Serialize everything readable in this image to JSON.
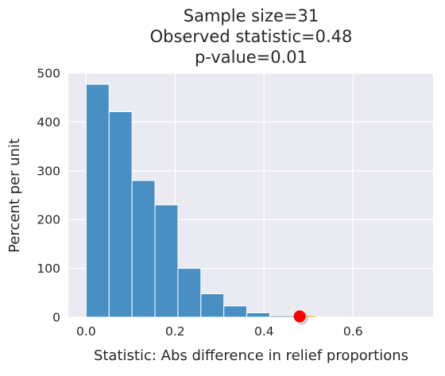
{
  "chart_data": {
    "type": "bar",
    "title_lines": [
      "Sample size=31",
      "Observed statistic=0.48",
      "p-value=0.01"
    ],
    "xlabel": "Statistic: Abs difference in relief proportions",
    "ylabel": "Percent per unit",
    "xlim": [
      -0.04,
      0.78
    ],
    "ylim": [
      0,
      500
    ],
    "x_ticks": [
      0.0,
      0.2,
      0.4,
      0.6
    ],
    "x_tick_labels": [
      "0.0",
      "0.2",
      "0.4",
      "0.6"
    ],
    "y_ticks": [
      0,
      100,
      200,
      300,
      400,
      500
    ],
    "y_tick_labels": [
      "0",
      "100",
      "200",
      "300",
      "400",
      "500"
    ],
    "grid": true,
    "background": "#eaeaf2",
    "bar_color": "#3a87c0",
    "tail_color": "#f2c500",
    "marker_color": "#ff0000",
    "bins": [
      {
        "x0": 0.0,
        "x1": 0.0516,
        "value": 477
      },
      {
        "x0": 0.0516,
        "x1": 0.1032,
        "value": 421
      },
      {
        "x0": 0.1032,
        "x1": 0.1548,
        "value": 280
      },
      {
        "x0": 0.1548,
        "x1": 0.2064,
        "value": 230
      },
      {
        "x0": 0.2064,
        "x1": 0.258,
        "value": 100
      },
      {
        "x0": 0.258,
        "x1": 0.3096,
        "value": 48
      },
      {
        "x0": 0.3096,
        "x1": 0.3612,
        "value": 23
      },
      {
        "x0": 0.3612,
        "x1": 0.4128,
        "value": 9
      },
      {
        "x0": 0.4128,
        "x1": 0.4644,
        "value": 3
      },
      {
        "x0": 0.4644,
        "x1": 0.516,
        "value": 2
      },
      {
        "x0": 0.516,
        "x1": 0.5676,
        "value": 1
      },
      {
        "x0": 0.5676,
        "x1": 0.6192,
        "value": 0
      },
      {
        "x0": 0.6192,
        "x1": 0.6708,
        "value": 0
      },
      {
        "x0": 0.6708,
        "x1": 0.7224,
        "value": 0
      }
    ],
    "observed_statistic": 0.48
  }
}
